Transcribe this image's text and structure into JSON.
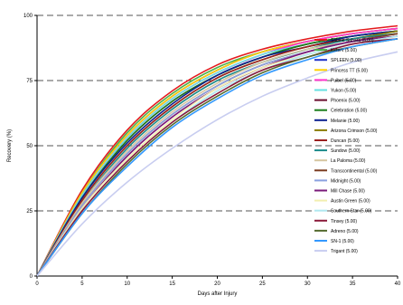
{
  "chart_data": {
    "type": "line",
    "xlabel": "Days after Injury",
    "ylabel": "Recovery (%)",
    "xlim": [
      0,
      40
    ],
    "ylim": [
      0,
      100
    ],
    "x_ticks": [
      "0",
      "5",
      "10",
      "15",
      "20",
      "25",
      "30",
      "35",
      "40"
    ],
    "y_ticks": [
      "0",
      "25",
      "50",
      "75",
      "100"
    ],
    "grid": "horizontal dashed",
    "legend_position": "right, inside plot",
    "series": [
      {
        "name": "Sabine Sahara (5.00)",
        "color": "#e41a1c",
        "values": [
          0,
          33,
          56,
          71,
          81,
          87,
          91,
          94,
          96
        ]
      },
      {
        "name": "Keterv (5.00)",
        "color": "#4daf4a",
        "values": [
          0,
          32,
          55,
          70,
          80,
          86,
          90,
          93,
          95
        ]
      },
      {
        "name": "SPLEEN (5.00)",
        "color": "#2033c8",
        "values": [
          0,
          32,
          54,
          69,
          79,
          86,
          90,
          93,
          95
        ]
      },
      {
        "name": "Princess TT (5.00)",
        "color": "#ffd000",
        "values": [
          0,
          32,
          54,
          69,
          79,
          86,
          90,
          93,
          95
        ]
      },
      {
        "name": "Puibel (5.00)",
        "color": "#ff33cc",
        "values": [
          0,
          31,
          53,
          68,
          78,
          85,
          90,
          93,
          95
        ]
      },
      {
        "name": "Yukon (5.00)",
        "color": "#66e0e0",
        "values": [
          0,
          31,
          53,
          68,
          78,
          85,
          89,
          92,
          94
        ]
      },
      {
        "name": "Phoenix (5.00)",
        "color": "#6a0d2e",
        "values": [
          0,
          30,
          52,
          67,
          77,
          84,
          89,
          92,
          94
        ]
      },
      {
        "name": "Celebration (5.00)",
        "color": "#1a7d1a",
        "values": [
          0,
          30,
          52,
          67,
          77,
          84,
          89,
          92,
          94
        ]
      },
      {
        "name": "Melanie (5.00)",
        "color": "#0a1f8f",
        "values": [
          0,
          30,
          51,
          66,
          77,
          84,
          88,
          92,
          94
        ]
      },
      {
        "name": "Arizona Crimson (5.00)",
        "color": "#8a7d00",
        "values": [
          0,
          29,
          50,
          65,
          76,
          83,
          88,
          91,
          94
        ]
      },
      {
        "name": "Duncan (5.00)",
        "color": "#9a2020",
        "values": [
          0,
          29,
          50,
          65,
          76,
          83,
          88,
          91,
          93
        ]
      },
      {
        "name": "Sundow (5.00)",
        "color": "#1a8a8a",
        "values": [
          0,
          28,
          49,
          64,
          75,
          82,
          87,
          91,
          93
        ]
      },
      {
        "name": "La Paloma (5.00)",
        "color": "#d5c6a0",
        "values": [
          0,
          28,
          48,
          63,
          74,
          82,
          87,
          90,
          93
        ]
      },
      {
        "name": "Transcontinental (5.00)",
        "color": "#7a3b1f",
        "values": [
          0,
          27,
          47,
          62,
          73,
          81,
          86,
          90,
          93
        ]
      },
      {
        "name": "Midnight (5.00)",
        "color": "#8aa0e0",
        "values": [
          0,
          27,
          47,
          62,
          73,
          81,
          86,
          90,
          92
        ]
      },
      {
        "name": "Mill Chase (5.00)",
        "color": "#7a1a7a",
        "values": [
          0,
          26,
          46,
          61,
          72,
          80,
          86,
          90,
          92
        ]
      },
      {
        "name": "Austin Green (5.00)",
        "color": "#f2efb0",
        "values": [
          0,
          26,
          45,
          60,
          72,
          80,
          85,
          89,
          92
        ]
      },
      {
        "name": "Southern Star (5.00)",
        "color": "#b0e8f0",
        "values": [
          0,
          25,
          44,
          59,
          71,
          79,
          85,
          89,
          92
        ]
      },
      {
        "name": "Tinsey (5.00)",
        "color": "#8a1a3a",
        "values": [
          0,
          25,
          44,
          59,
          70,
          79,
          84,
          89,
          91
        ]
      },
      {
        "name": "Adreno (5.00)",
        "color": "#556b2f",
        "values": [
          0,
          24,
          43,
          58,
          69,
          78,
          84,
          88,
          91
        ]
      },
      {
        "name": "SN-1 (5.00)",
        "color": "#3399ff",
        "values": [
          0,
          24,
          42,
          57,
          68,
          77,
          83,
          88,
          91
        ]
      },
      {
        "name": "Trigant (5.00)",
        "color": "#c8cdf0",
        "values": [
          0,
          20,
          36,
          49,
          60,
          69,
          76,
          82,
          86
        ]
      }
    ]
  }
}
